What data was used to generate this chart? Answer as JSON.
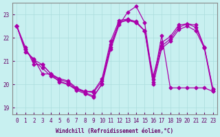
{
  "xlabel": "Windchill (Refroidissement éolien,°C)",
  "bg_color": "#c8f0f0",
  "line_color": "#aa00aa",
  "grid_color": "#aadddd",
  "xlim": [
    -0.5,
    23.5
  ],
  "ylim": [
    18.7,
    23.5
  ],
  "yticks": [
    19,
    20,
    21,
    22,
    23
  ],
  "xticks": [
    0,
    1,
    2,
    3,
    4,
    5,
    6,
    7,
    8,
    9,
    10,
    11,
    12,
    13,
    14,
    15,
    16,
    17,
    18,
    19,
    20,
    21,
    22,
    23
  ],
  "series": [
    [
      22.5,
      21.6,
      20.85,
      20.85,
      20.45,
      20.1,
      20.0,
      19.8,
      19.65,
      19.5,
      20.0,
      21.5,
      22.55,
      23.1,
      23.35,
      22.65,
      20.1,
      22.1,
      19.85,
      19.85,
      19.85,
      19.85,
      19.85,
      19.7
    ],
    [
      22.5,
      21.5,
      21.0,
      20.7,
      20.35,
      20.15,
      20.0,
      19.75,
      19.6,
      19.45,
      20.05,
      21.6,
      22.65,
      22.75,
      22.65,
      22.3,
      20.0,
      21.55,
      21.85,
      22.35,
      22.5,
      22.3,
      21.55,
      19.7
    ],
    [
      22.5,
      21.5,
      21.05,
      20.85,
      20.45,
      20.2,
      20.1,
      19.8,
      19.7,
      19.65,
      20.15,
      21.7,
      22.65,
      22.8,
      22.7,
      22.3,
      20.2,
      21.65,
      21.95,
      22.45,
      22.6,
      22.45,
      21.6,
      19.8
    ],
    [
      22.5,
      21.4,
      21.1,
      20.45,
      20.45,
      20.25,
      20.15,
      19.85,
      19.7,
      19.7,
      20.25,
      21.85,
      22.75,
      22.8,
      22.65,
      22.3,
      20.35,
      21.8,
      22.05,
      22.55,
      22.6,
      22.55,
      21.6,
      19.8
    ]
  ]
}
